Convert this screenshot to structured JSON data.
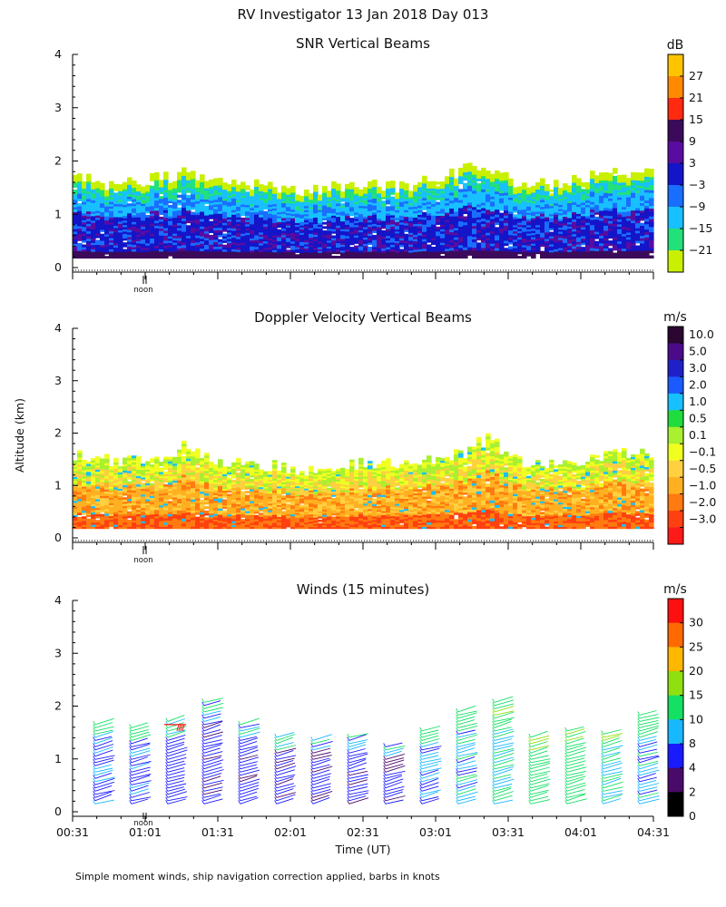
{
  "figure_title": "RV Investigator  13 Jan 2018 Day 013",
  "footnote": "Simple moment winds, ship navigation correction applied, barbs in knots",
  "noon_label": "noon",
  "chart_data": [
    {
      "type": "heatmap",
      "title": "SNR Vertical Beams",
      "ylabel": "",
      "ylim": [
        0,
        4
      ],
      "yticks": [
        "0",
        "1",
        "2",
        "3",
        "4"
      ],
      "colorbar": {
        "unit": "dB",
        "labels": [
          "27",
          "21",
          "15",
          "9",
          "3",
          "−3",
          "−9",
          "−15",
          "−21"
        ],
        "colors": [
          "#ffc400",
          "#ff8a00",
          "#ff2a10",
          "#3c0a5a",
          "#5a0ca0",
          "#1414c8",
          "#1a6eff",
          "#18c0ff",
          "#22e07a",
          "#c8f000"
        ]
      },
      "profile": {
        "base_km": 0.18,
        "top_km": [
          1.7,
          1.6,
          1.55,
          1.65,
          1.7,
          1.8,
          1.6,
          1.55,
          1.6,
          1.5,
          1.45,
          1.5,
          1.55,
          1.6,
          1.5,
          1.6,
          1.7,
          1.85,
          1.9,
          1.6,
          1.55,
          1.6,
          1.7,
          1.75,
          1.8,
          1.85
        ]
      }
    },
    {
      "type": "heatmap",
      "title": "Doppler Velocity Vertical Beams",
      "ylabel": "Altitude (km)",
      "ylim": [
        0,
        4
      ],
      "yticks": [
        "0",
        "1",
        "2",
        "3",
        "4"
      ],
      "colorbar": {
        "unit": "m/s",
        "labels": [
          "10.0",
          "5.0",
          "3.0",
          "2.0",
          "1.0",
          "0.5",
          "0.1",
          "−0.1",
          "−0.5",
          "−1.0",
          "−2.0",
          "−3.0"
        ],
        "colors": [
          "#2a0630",
          "#4a0a8a",
          "#2020c8",
          "#1a5aff",
          "#18c0ff",
          "#20dc3c",
          "#a8f030",
          "#f0ff20",
          "#ffd040",
          "#ffb020",
          "#ff7a10",
          "#ff4010",
          "#ff1a1a"
        ]
      },
      "profile": {
        "base_km": 0.18,
        "top_km": [
          1.6,
          1.5,
          1.45,
          1.5,
          1.6,
          1.8,
          1.5,
          1.45,
          1.4,
          1.35,
          1.3,
          1.35,
          1.4,
          1.45,
          1.4,
          1.5,
          1.55,
          1.7,
          1.9,
          1.5,
          1.4,
          1.45,
          1.5,
          1.55,
          1.6,
          1.65
        ]
      }
    },
    {
      "type": "wind-barbs",
      "title": "Winds (15 minutes)",
      "xlabel": "Time (UT)",
      "ylim": [
        0,
        4
      ],
      "yticks": [
        "0",
        "1",
        "2",
        "3",
        "4"
      ],
      "xticks": [
        "00:31",
        "01:01",
        "01:31",
        "02:01",
        "02:31",
        "03:01",
        "03:31",
        "04:01",
        "04:31"
      ],
      "colorbar": {
        "unit": "m/s",
        "labels": [
          "30",
          "25",
          "20",
          "15",
          "10",
          "8",
          "4",
          "2",
          "0"
        ],
        "colors": [
          "#ff1010",
          "#ff6a00",
          "#ffb800",
          "#90e010",
          "#14e064",
          "#18b8ff",
          "#1a1aff",
          "#4a0a6a",
          "#000000"
        ]
      },
      "profiles": [
        {
          "time": "00:41",
          "top_km": 1.62,
          "speed_ms": 7
        },
        {
          "time": "00:56",
          "top_km": 1.6,
          "speed_ms": 8
        },
        {
          "time": "01:11",
          "top_km": 1.72,
          "speed_ms": 6
        },
        {
          "time": "01:26",
          "top_km": 2.05,
          "speed_ms": 5
        },
        {
          "time": "01:41",
          "top_km": 1.65,
          "speed_ms": 5
        },
        {
          "time": "01:56",
          "top_km": 1.4,
          "speed_ms": 5
        },
        {
          "time": "02:11",
          "top_km": 1.35,
          "speed_ms": 5
        },
        {
          "time": "02:26",
          "top_km": 1.42,
          "speed_ms": 5
        },
        {
          "time": "02:41",
          "top_km": 1.25,
          "speed_ms": 5
        },
        {
          "time": "02:56",
          "top_km": 1.5,
          "speed_ms": 8
        },
        {
          "time": "03:11",
          "top_km": 1.9,
          "speed_ms": 9
        },
        {
          "time": "03:26",
          "top_km": 2.05,
          "speed_ms": 10
        },
        {
          "time": "03:41",
          "top_km": 1.4,
          "speed_ms": 12
        },
        {
          "time": "03:56",
          "top_km": 1.5,
          "speed_ms": 12
        },
        {
          "time": "04:11",
          "top_km": 1.45,
          "speed_ms": 10
        },
        {
          "time": "04:26",
          "top_km": 1.8,
          "speed_ms": 9
        }
      ]
    }
  ]
}
